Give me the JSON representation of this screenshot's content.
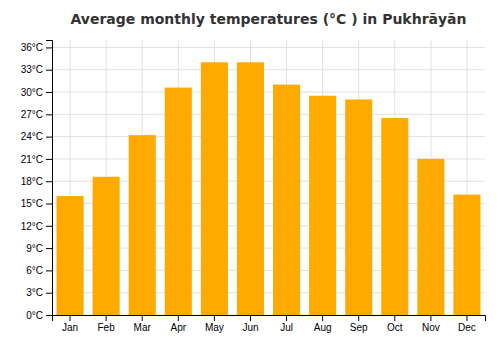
{
  "chart_data": {
    "type": "bar",
    "title": "Average monthly temperatures (°C ) in Pukhrāyān",
    "categories": [
      "Jan",
      "Feb",
      "Mar",
      "Apr",
      "May",
      "Jun",
      "Jul",
      "Aug",
      "Sep",
      "Oct",
      "Nov",
      "Dec"
    ],
    "values": [
      16.0,
      18.6,
      24.2,
      30.6,
      34.0,
      34.0,
      31.0,
      29.5,
      29.0,
      26.5,
      21.0,
      16.2
    ],
    "color": "#FFAA00",
    "ylim": [
      0,
      37
    ],
    "yticks": [
      {
        "value": 0,
        "label": "0°C"
      },
      {
        "value": 3,
        "label": "3°C"
      },
      {
        "value": 6,
        "label": "6°C"
      },
      {
        "value": 9,
        "label": "9°C"
      },
      {
        "value": 12,
        "label": "12°C"
      },
      {
        "value": 15,
        "label": "15°C"
      },
      {
        "value": 18,
        "label": "18°C"
      },
      {
        "value": 21,
        "label": "21°C"
      },
      {
        "value": 24,
        "label": "24°C"
      },
      {
        "value": 27,
        "label": "27°C"
      },
      {
        "value": 30,
        "label": "30°C"
      },
      {
        "value": 33,
        "label": "33°C"
      },
      {
        "value": 36,
        "label": "36°C"
      }
    ],
    "grid": true
  }
}
